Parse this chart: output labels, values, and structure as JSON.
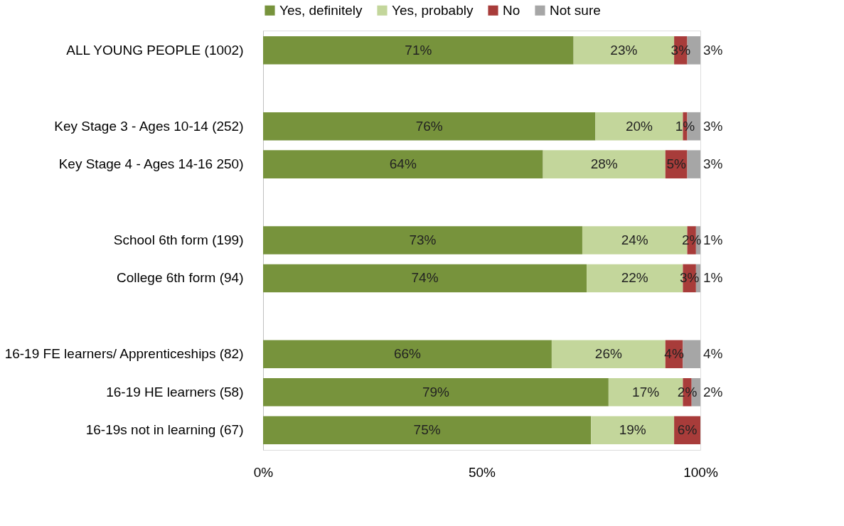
{
  "chart_data": {
    "type": "bar",
    "orientation": "horizontal",
    "stacked": true,
    "data_labels": true,
    "legend": "top",
    "grid": false,
    "categories": [
      "ALL YOUNG PEOPLE (1002)",
      null,
      "Key Stage 3 - Ages 10-14 (252)",
      "Key Stage 4 - Ages 14-16 250)",
      null,
      "School 6th form (199)",
      "College 6th form (94)",
      null,
      "16-19 FE learners/ Apprenticeships (82)",
      "16-19 HE learners  (58)",
      "16-19s not in learning (67)"
    ],
    "series": [
      {
        "name": "Yes, definitely",
        "color": "#77933c",
        "values": [
          71,
          null,
          76,
          64,
          null,
          73,
          74,
          null,
          66,
          79,
          75
        ],
        "value_labels": [
          "71%",
          null,
          "76%",
          "64%",
          null,
          "73%",
          "74%",
          null,
          "66%",
          "79%",
          "75%"
        ]
      },
      {
        "name": "Yes, probably",
        "color": "#c3d69b",
        "values": [
          23,
          null,
          20,
          28,
          null,
          24,
          22,
          null,
          26,
          17,
          19
        ],
        "value_labels": [
          "23%",
          null,
          "20%",
          "28%",
          null,
          "24%",
          "22%",
          null,
          "26%",
          "17%",
          "19%"
        ]
      },
      {
        "name": "No",
        "color": "#a83c3a",
        "values": [
          3,
          null,
          1,
          5,
          null,
          2,
          3,
          null,
          4,
          2,
          6
        ],
        "value_labels": [
          "3%",
          null,
          "1%",
          "5%",
          null,
          "2%",
          "3%",
          null,
          "4%",
          "2%",
          "6%"
        ]
      },
      {
        "name": "Not sure",
        "color": "#a6a6a6",
        "values": [
          3,
          null,
          3,
          3,
          null,
          1,
          1,
          null,
          4,
          2,
          null
        ],
        "value_labels": [
          "3%",
          null,
          "3%",
          "3%",
          null,
          "1%",
          "1%",
          null,
          "4%",
          "2%",
          null
        ]
      }
    ],
    "xlim": [
      0,
      100
    ],
    "xticks": [
      {
        "value": 0,
        "label": "0%"
      },
      {
        "value": 50,
        "label": "50%"
      },
      {
        "value": 100,
        "label": "100%"
      }
    ]
  }
}
